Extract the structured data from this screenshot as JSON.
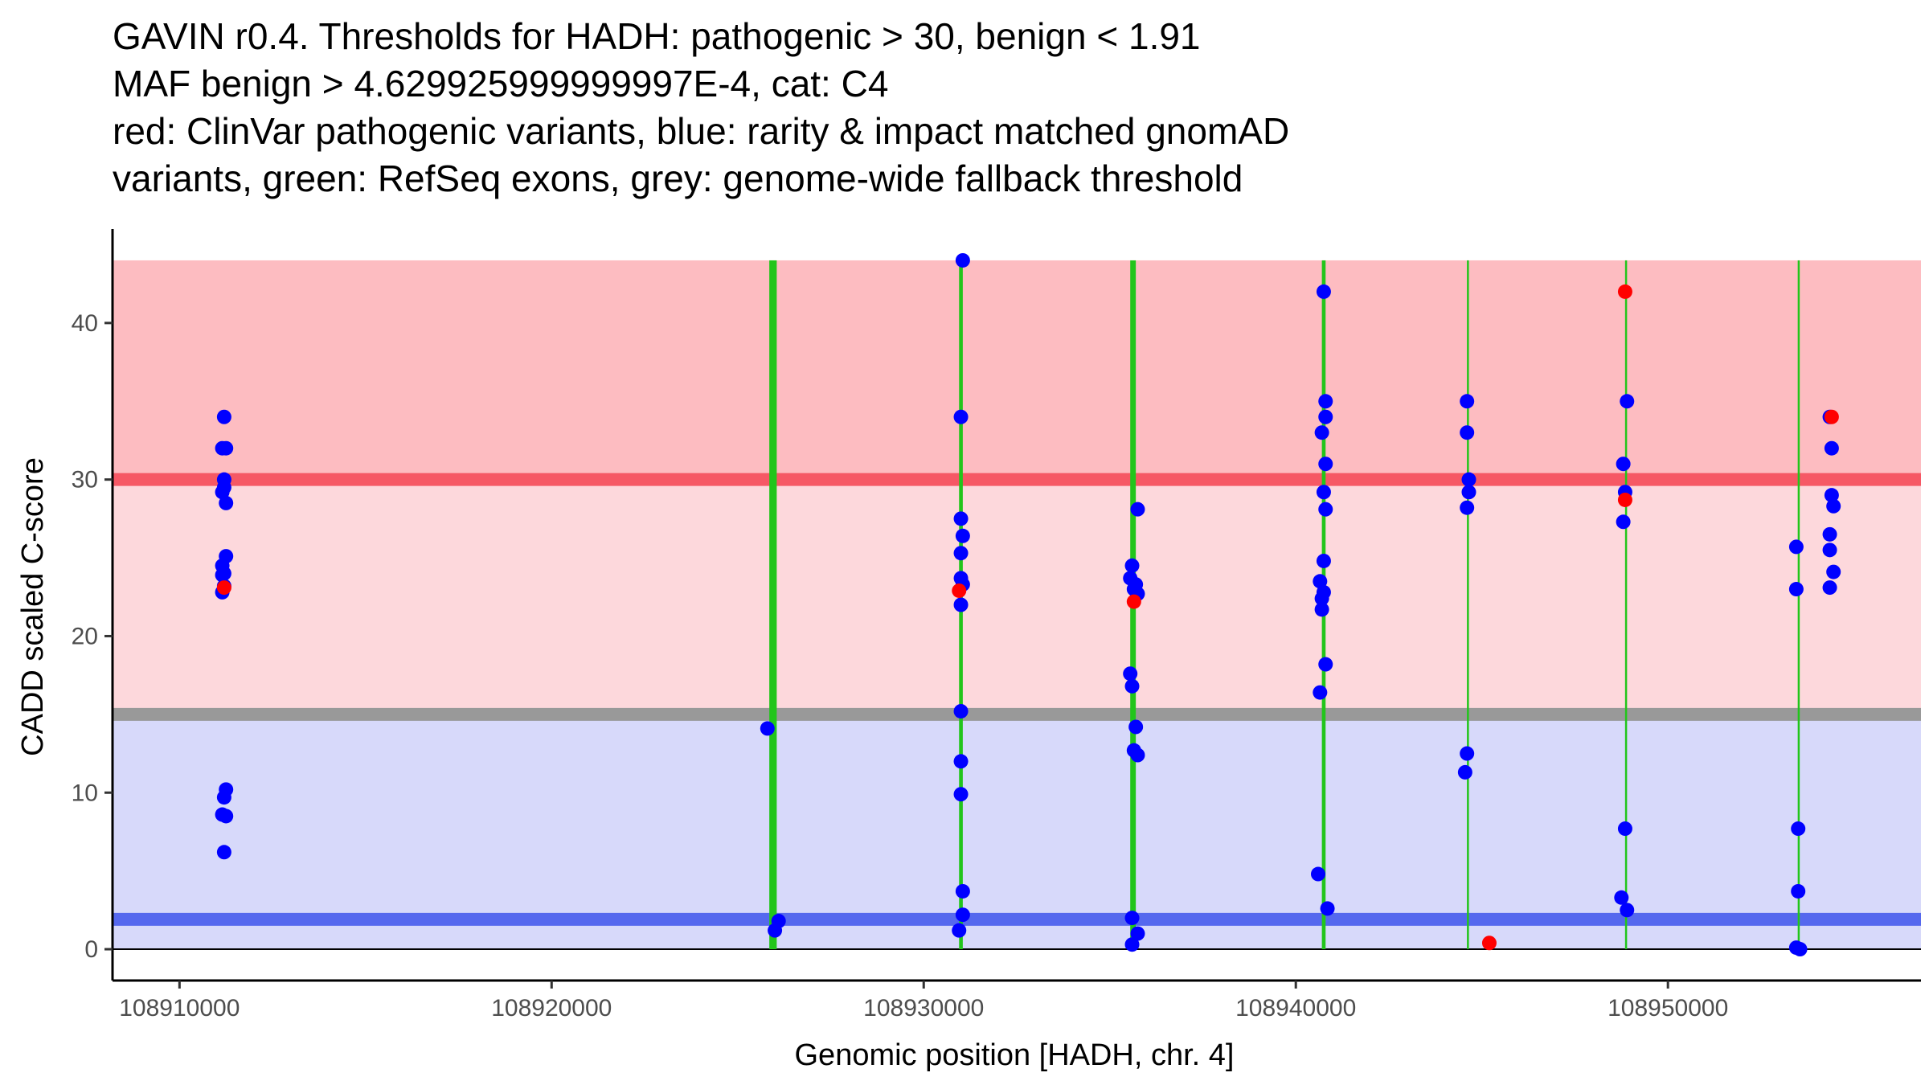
{
  "title_lines": [
    "GAVIN r0.4. Thresholds for HADH: pathogenic > 30, benign < 1.91",
    "MAF benign > 4.629925999999997E-4, cat: C4",
    "red: ClinVar pathogenic variants, blue: rarity & impact matched gnomAD",
    "variants, green: RefSeq exons, grey: genome-wide fallback threshold"
  ],
  "colors": {
    "pathogenic_region": "#fdbcc1",
    "vus_region": "#fdd8dc",
    "benign_region": "#d7d9fa",
    "pathogenic_line": "#f65865",
    "fallback_line": "#999999",
    "benign_line": "#5568ee",
    "exon": "#22c51b",
    "gnomad_point": "#0000ff",
    "clinvar_point": "#ff0000",
    "axis": "#000000"
  },
  "chart_data": {
    "type": "scatter",
    "xlabel": "Genomic position [HADH, chr. 4]",
    "ylabel": "CADD scaled C-score",
    "xlim": [
      108908200,
      108956800
    ],
    "ylim": [
      -2,
      46
    ],
    "x_ticks": [
      108910000,
      108920000,
      108930000,
      108940000,
      108950000
    ],
    "x_tick_labels": [
      "108910000",
      "108920000",
      "108930000",
      "108940000",
      "108950000"
    ],
    "y_ticks": [
      0,
      10,
      20,
      30,
      40
    ],
    "y_tick_labels": [
      "0",
      "10",
      "20",
      "30",
      "40"
    ],
    "regions": {
      "x_range": [
        108908200,
        108956800
      ],
      "pathogenic": [
        30,
        44
      ],
      "vus": [
        15,
        30
      ],
      "benign": [
        0,
        15
      ]
    },
    "thresholds": {
      "pathogenic": 30,
      "fallback": 15,
      "benign": 1.91
    },
    "exons": [
      {
        "start": 108925850,
        "end": 108926050
      },
      {
        "start": 108930950,
        "end": 108931050
      },
      {
        "start": 108935550,
        "end": 108935700
      },
      {
        "start": 108940700,
        "end": 108940800
      },
      {
        "start": 108944600,
        "end": 108944650
      },
      {
        "start": 108948850,
        "end": 108948900
      },
      {
        "start": 108953500,
        "end": 108953530
      }
    ],
    "series": [
      {
        "name": "gnomAD variants",
        "points": [
          [
            108911200,
            34
          ],
          [
            108911150,
            32
          ],
          [
            108911250,
            32
          ],
          [
            108911200,
            30
          ],
          [
            108911200,
            29.5
          ],
          [
            108911150,
            29.2
          ],
          [
            108911250,
            28.5
          ],
          [
            108911250,
            25.1
          ],
          [
            108911150,
            24.5
          ],
          [
            108911200,
            24
          ],
          [
            108911150,
            23.9
          ],
          [
            108911200,
            23.2
          ],
          [
            108911150,
            22.8
          ],
          [
            108911250,
            10.2
          ],
          [
            108911200,
            9.7
          ],
          [
            108911150,
            8.6
          ],
          [
            108911250,
            8.5
          ],
          [
            108911200,
            6.2
          ],
          [
            108925800,
            14.1
          ],
          [
            108926000,
            1.2
          ],
          [
            108926100,
            1.8
          ],
          [
            108931050,
            44
          ],
          [
            108931000,
            34
          ],
          [
            108931000,
            27.5
          ],
          [
            108931050,
            26.4
          ],
          [
            108931000,
            25.3
          ],
          [
            108931000,
            23.7
          ],
          [
            108931050,
            23.3
          ],
          [
            108931000,
            22
          ],
          [
            108931000,
            15.2
          ],
          [
            108931000,
            12
          ],
          [
            108931000,
            9.9
          ],
          [
            108931050,
            3.7
          ],
          [
            108931050,
            2.2
          ],
          [
            108930950,
            1.2
          ],
          [
            108935600,
            24.5
          ],
          [
            108935550,
            23.7
          ],
          [
            108935700,
            23.3
          ],
          [
            108935650,
            23
          ],
          [
            108935750,
            22.7
          ],
          [
            108935750,
            28.1
          ],
          [
            108935550,
            17.6
          ],
          [
            108935600,
            16.8
          ],
          [
            108935700,
            14.2
          ],
          [
            108935650,
            12.7
          ],
          [
            108935750,
            12.4
          ],
          [
            108935600,
            2
          ],
          [
            108935750,
            1
          ],
          [
            108935600,
            0.3
          ],
          [
            108940750,
            42
          ],
          [
            108940800,
            35
          ],
          [
            108940800,
            34
          ],
          [
            108940700,
            33
          ],
          [
            108940800,
            31
          ],
          [
            108940750,
            29.2
          ],
          [
            108940800,
            28.1
          ],
          [
            108940750,
            24.8
          ],
          [
            108940650,
            23.5
          ],
          [
            108940750,
            22.8
          ],
          [
            108940700,
            22.4
          ],
          [
            108940700,
            21.7
          ],
          [
            108940800,
            18.2
          ],
          [
            108940650,
            16.4
          ],
          [
            108940600,
            4.8
          ],
          [
            108940850,
            2.6
          ],
          [
            108944600,
            35
          ],
          [
            108944600,
            33
          ],
          [
            108944650,
            30
          ],
          [
            108944650,
            29.2
          ],
          [
            108944600,
            28.2
          ],
          [
            108944600,
            12.5
          ],
          [
            108944550,
            11.3
          ],
          [
            108948900,
            35
          ],
          [
            108948800,
            31
          ],
          [
            108948850,
            29.2
          ],
          [
            108948800,
            27.3
          ],
          [
            108948850,
            7.7
          ],
          [
            108948750,
            3.3
          ],
          [
            108948900,
            2.5
          ],
          [
            108953450,
            25.7
          ],
          [
            108953450,
            23
          ],
          [
            108953500,
            7.7
          ],
          [
            108953500,
            3.7
          ],
          [
            108953450,
            0.1
          ],
          [
            108953550,
            0
          ],
          [
            108954350,
            34
          ],
          [
            108954400,
            32
          ],
          [
            108954400,
            29
          ],
          [
            108954450,
            28.3
          ],
          [
            108954350,
            26.5
          ],
          [
            108954350,
            25.5
          ],
          [
            108954450,
            24.1
          ],
          [
            108954350,
            23.1
          ]
        ]
      },
      {
        "name": "ClinVar pathogenic",
        "points": [
          [
            108911200,
            23.1
          ],
          [
            108930950,
            22.9
          ],
          [
            108935650,
            22.2
          ],
          [
            108945200,
            0.4
          ],
          [
            108948850,
            42
          ],
          [
            108948850,
            28.7
          ],
          [
            108954400,
            34
          ]
        ]
      }
    ]
  }
}
